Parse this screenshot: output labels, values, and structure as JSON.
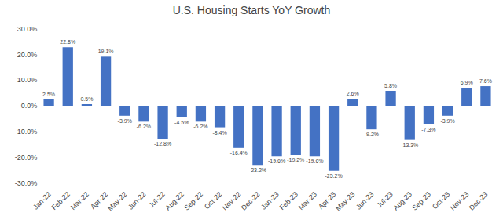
{
  "chart_data": {
    "type": "bar",
    "title": "U.S. Housing Starts YoY Growth",
    "categories": [
      "Jan-22",
      "Feb-22",
      "Mar-22",
      "Apr-22",
      "May-22",
      "Jun-22",
      "Jul-22",
      "Aug-22",
      "Sep-22",
      "Oct-22",
      "Nov-22",
      "Dec-22",
      "Jan-23",
      "Feb-23",
      "Mar-23",
      "Apr-23",
      "May-23",
      "Jun-23",
      "Jul-23",
      "Aug-23",
      "Sep-23",
      "Oct-23",
      "Nov-23",
      "Dec-23"
    ],
    "values": [
      2.5,
      22.8,
      0.5,
      19.1,
      -3.9,
      -6.2,
      -12.8,
      -4.5,
      -6.2,
      -8.4,
      -16.4,
      -23.2,
      -19.6,
      -19.2,
      -19.6,
      -25.2,
      2.6,
      -9.2,
      5.8,
      -13.3,
      -7.3,
      -3.9,
      6.9,
      7.6
    ],
    "value_labels": [
      "2.5%",
      "22.8%",
      "0.5%",
      "19.1%",
      "-3.9%",
      "-6.2%",
      "-12.8%",
      "-4.5%",
      "-6.2%",
      "-8.4%",
      "-16.4%",
      "-23.2%",
      "-19.6%",
      "-19.2%",
      "-19.6%",
      "-25.2%",
      "2.6%",
      "-9.2%",
      "5.8%",
      "-13.3%",
      "-7.3%",
      "-3.9%",
      "6.9%",
      "7.6%"
    ],
    "data_labels": true,
    "color": "#4472C4",
    "ylim": [
      -32,
      32
    ],
    "yticks": [
      {
        "value": -30,
        "label": "-30.0%"
      },
      {
        "value": -20,
        "label": "-20.0%"
      },
      {
        "value": -10,
        "label": "-10.0%"
      },
      {
        "value": 0,
        "label": "0.0%"
      },
      {
        "value": 10,
        "label": "10.0%"
      },
      {
        "value": 20,
        "label": "20.0%"
      },
      {
        "value": 30,
        "label": "30.0%"
      }
    ],
    "grid": false
  }
}
